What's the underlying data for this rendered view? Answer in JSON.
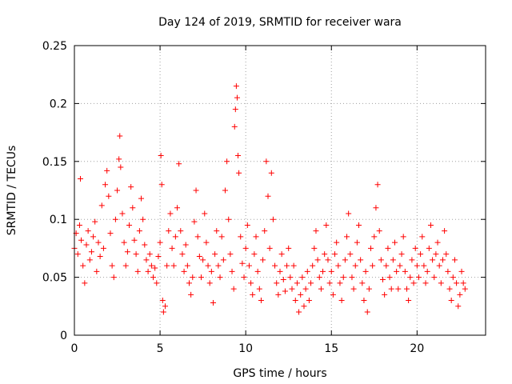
{
  "chart_data": {
    "type": "scatter",
    "title": "Day 124 of 2019, SRMTID for receiver wara",
    "xlabel": "GPS time / hours",
    "ylabel": "SRMTID / TECUs",
    "xlim": [
      0,
      24
    ],
    "ylim": [
      0,
      0.25
    ],
    "xticks": [
      0,
      5,
      10,
      15,
      20
    ],
    "xtick_labels": [
      "0",
      "5",
      "10",
      "15",
      "20"
    ],
    "yticks": [
      0,
      0.05,
      0.1,
      0.15,
      0.2,
      0.25
    ],
    "ytick_labels": [
      "0",
      "0.05",
      "0.1",
      "0.15",
      "0.2",
      "0.25"
    ],
    "grid": true,
    "marker": "+",
    "series": [
      {
        "name": "SRMTID",
        "color": "#ff0000",
        "points": [
          [
            0.0,
            0.075
          ],
          [
            0.1,
            0.088
          ],
          [
            0.2,
            0.07
          ],
          [
            0.3,
            0.095
          ],
          [
            0.35,
            0.135
          ],
          [
            0.4,
            0.082
          ],
          [
            0.5,
            0.06
          ],
          [
            0.6,
            0.045
          ],
          [
            0.7,
            0.078
          ],
          [
            0.8,
            0.09
          ],
          [
            0.9,
            0.065
          ],
          [
            1.0,
            0.072
          ],
          [
            1.1,
            0.085
          ],
          [
            1.2,
            0.098
          ],
          [
            1.3,
            0.055
          ],
          [
            1.4,
            0.08
          ],
          [
            1.5,
            0.068
          ],
          [
            1.6,
            0.112
          ],
          [
            1.7,
            0.075
          ],
          [
            1.8,
            0.13
          ],
          [
            1.9,
            0.142
          ],
          [
            2.0,
            0.12
          ],
          [
            2.1,
            0.088
          ],
          [
            2.2,
            0.06
          ],
          [
            2.3,
            0.05
          ],
          [
            2.4,
            0.1
          ],
          [
            2.5,
            0.125
          ],
          [
            2.6,
            0.152
          ],
          [
            2.65,
            0.172
          ],
          [
            2.7,
            0.145
          ],
          [
            2.8,
            0.105
          ],
          [
            2.9,
            0.08
          ],
          [
            3.0,
            0.06
          ],
          [
            3.1,
            0.072
          ],
          [
            3.2,
            0.095
          ],
          [
            3.3,
            0.128
          ],
          [
            3.4,
            0.11
          ],
          [
            3.5,
            0.082
          ],
          [
            3.6,
            0.07
          ],
          [
            3.7,
            0.055
          ],
          [
            3.8,
            0.09
          ],
          [
            3.9,
            0.118
          ],
          [
            4.0,
            0.1
          ],
          [
            4.1,
            0.078
          ],
          [
            4.2,
            0.065
          ],
          [
            4.3,
            0.055
          ],
          [
            4.4,
            0.07
          ],
          [
            4.5,
            0.06
          ],
          [
            4.6,
            0.05
          ],
          [
            4.7,
            0.058
          ],
          [
            4.8,
            0.045
          ],
          [
            4.9,
            0.068
          ],
          [
            5.0,
            0.08
          ],
          [
            5.05,
            0.155
          ],
          [
            5.1,
            0.13
          ],
          [
            5.15,
            0.03
          ],
          [
            5.2,
            0.02
          ],
          [
            5.3,
            0.025
          ],
          [
            5.4,
            0.06
          ],
          [
            5.5,
            0.09
          ],
          [
            5.6,
            0.105
          ],
          [
            5.7,
            0.075
          ],
          [
            5.8,
            0.06
          ],
          [
            5.9,
            0.085
          ],
          [
            6.0,
            0.11
          ],
          [
            6.1,
            0.148
          ],
          [
            6.2,
            0.09
          ],
          [
            6.3,
            0.07
          ],
          [
            6.4,
            0.055
          ],
          [
            6.5,
            0.078
          ],
          [
            6.6,
            0.06
          ],
          [
            6.7,
            0.045
          ],
          [
            6.8,
            0.035
          ],
          [
            6.9,
            0.05
          ],
          [
            7.0,
            0.098
          ],
          [
            7.1,
            0.125
          ],
          [
            7.2,
            0.085
          ],
          [
            7.3,
            0.068
          ],
          [
            7.4,
            0.05
          ],
          [
            7.5,
            0.065
          ],
          [
            7.6,
            0.105
          ],
          [
            7.7,
            0.08
          ],
          [
            7.8,
            0.06
          ],
          [
            7.9,
            0.045
          ],
          [
            8.0,
            0.055
          ],
          [
            8.1,
            0.028
          ],
          [
            8.2,
            0.07
          ],
          [
            8.3,
            0.09
          ],
          [
            8.4,
            0.06
          ],
          [
            8.5,
            0.05
          ],
          [
            8.6,
            0.085
          ],
          [
            8.7,
            0.065
          ],
          [
            8.8,
            0.125
          ],
          [
            8.9,
            0.15
          ],
          [
            9.0,
            0.1
          ],
          [
            9.1,
            0.07
          ],
          [
            9.2,
            0.055
          ],
          [
            9.3,
            0.04
          ],
          [
            9.35,
            0.18
          ],
          [
            9.4,
            0.195
          ],
          [
            9.45,
            0.215
          ],
          [
            9.5,
            0.205
          ],
          [
            9.55,
            0.155
          ],
          [
            9.6,
            0.14
          ],
          [
            9.7,
            0.085
          ],
          [
            9.8,
            0.062
          ],
          [
            9.9,
            0.05
          ],
          [
            10.0,
            0.075
          ],
          [
            10.1,
            0.095
          ],
          [
            10.2,
            0.06
          ],
          [
            10.3,
            0.045
          ],
          [
            10.4,
            0.035
          ],
          [
            10.5,
            0.07
          ],
          [
            10.6,
            0.085
          ],
          [
            10.7,
            0.055
          ],
          [
            10.8,
            0.04
          ],
          [
            10.9,
            0.03
          ],
          [
            11.0,
            0.065
          ],
          [
            11.1,
            0.09
          ],
          [
            11.2,
            0.15
          ],
          [
            11.3,
            0.12
          ],
          [
            11.4,
            0.075
          ],
          [
            11.5,
            0.14
          ],
          [
            11.6,
            0.1
          ],
          [
            11.7,
            0.06
          ],
          [
            11.8,
            0.045
          ],
          [
            11.9,
            0.035
          ],
          [
            12.0,
            0.055
          ],
          [
            12.1,
            0.07
          ],
          [
            12.2,
            0.048
          ],
          [
            12.3,
            0.038
          ],
          [
            12.4,
            0.06
          ],
          [
            12.5,
            0.075
          ],
          [
            12.6,
            0.05
          ],
          [
            12.7,
            0.04
          ],
          [
            12.8,
            0.06
          ],
          [
            12.9,
            0.03
          ],
          [
            13.0,
            0.045
          ],
          [
            13.1,
            0.02
          ],
          [
            13.2,
            0.035
          ],
          [
            13.3,
            0.05
          ],
          [
            13.4,
            0.025
          ],
          [
            13.5,
            0.04
          ],
          [
            13.6,
            0.055
          ],
          [
            13.7,
            0.03
          ],
          [
            13.8,
            0.045
          ],
          [
            13.9,
            0.06
          ],
          [
            14.0,
            0.075
          ],
          [
            14.1,
            0.09
          ],
          [
            14.2,
            0.065
          ],
          [
            14.3,
            0.05
          ],
          [
            14.4,
            0.04
          ],
          [
            14.5,
            0.055
          ],
          [
            14.6,
            0.07
          ],
          [
            14.7,
            0.095
          ],
          [
            14.8,
            0.065
          ],
          [
            14.9,
            0.045
          ],
          [
            15.0,
            0.055
          ],
          [
            15.1,
            0.035
          ],
          [
            15.2,
            0.07
          ],
          [
            15.3,
            0.08
          ],
          [
            15.4,
            0.06
          ],
          [
            15.5,
            0.045
          ],
          [
            15.6,
            0.03
          ],
          [
            15.7,
            0.05
          ],
          [
            15.8,
            0.065
          ],
          [
            15.9,
            0.085
          ],
          [
            16.0,
            0.105
          ],
          [
            16.1,
            0.07
          ],
          [
            16.2,
            0.05
          ],
          [
            16.3,
            0.04
          ],
          [
            16.4,
            0.06
          ],
          [
            16.5,
            0.08
          ],
          [
            16.6,
            0.095
          ],
          [
            16.7,
            0.065
          ],
          [
            16.8,
            0.045
          ],
          [
            16.9,
            0.03
          ],
          [
            17.0,
            0.055
          ],
          [
            17.1,
            0.02
          ],
          [
            17.2,
            0.04
          ],
          [
            17.3,
            0.075
          ],
          [
            17.4,
            0.06
          ],
          [
            17.5,
            0.085
          ],
          [
            17.6,
            0.11
          ],
          [
            17.7,
            0.13
          ],
          [
            17.8,
            0.09
          ],
          [
            17.9,
            0.065
          ],
          [
            18.0,
            0.048
          ],
          [
            18.1,
            0.035
          ],
          [
            18.2,
            0.06
          ],
          [
            18.3,
            0.075
          ],
          [
            18.4,
            0.05
          ],
          [
            18.5,
            0.04
          ],
          [
            18.6,
            0.065
          ],
          [
            18.7,
            0.08
          ],
          [
            18.8,
            0.055
          ],
          [
            18.9,
            0.04
          ],
          [
            19.0,
            0.06
          ],
          [
            19.1,
            0.07
          ],
          [
            19.2,
            0.085
          ],
          [
            19.3,
            0.055
          ],
          [
            19.4,
            0.04
          ],
          [
            19.5,
            0.03
          ],
          [
            19.6,
            0.05
          ],
          [
            19.7,
            0.065
          ],
          [
            19.8,
            0.045
          ],
          [
            19.9,
            0.075
          ],
          [
            20.0,
            0.06
          ],
          [
            20.1,
            0.05
          ],
          [
            20.2,
            0.07
          ],
          [
            20.3,
            0.085
          ],
          [
            20.4,
            0.06
          ],
          [
            20.5,
            0.045
          ],
          [
            20.6,
            0.055
          ],
          [
            20.7,
            0.075
          ],
          [
            20.8,
            0.095
          ],
          [
            20.9,
            0.065
          ],
          [
            21.0,
            0.05
          ],
          [
            21.1,
            0.07
          ],
          [
            21.2,
            0.08
          ],
          [
            21.3,
            0.06
          ],
          [
            21.4,
            0.045
          ],
          [
            21.5,
            0.065
          ],
          [
            21.6,
            0.09
          ],
          [
            21.7,
            0.07
          ],
          [
            21.8,
            0.055
          ],
          [
            21.9,
            0.04
          ],
          [
            22.0,
            0.03
          ],
          [
            22.1,
            0.05
          ],
          [
            22.2,
            0.065
          ],
          [
            22.3,
            0.045
          ],
          [
            22.4,
            0.025
          ],
          [
            22.5,
            0.035
          ],
          [
            22.6,
            0.055
          ],
          [
            22.7,
            0.045
          ],
          [
            22.8,
            0.04
          ]
        ]
      }
    ]
  }
}
